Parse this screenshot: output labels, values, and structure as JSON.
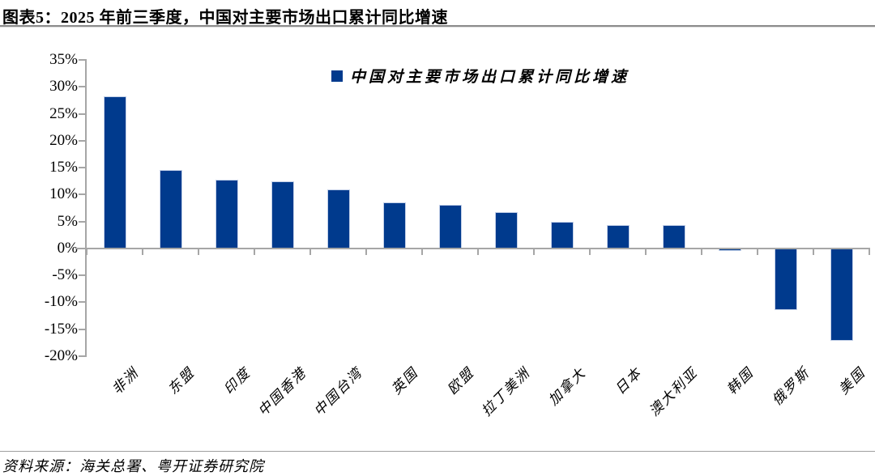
{
  "header": {
    "title": "图表5：2025 年前三季度，中国对主要市场出口累计同比增速"
  },
  "footer": {
    "source": "资料来源：海关总署、粤开证券研究院"
  },
  "chart_data": {
    "type": "bar",
    "title": "图表5：2025 年前三季度，中国对主要市场出口累计同比增速",
    "legend": "中国对主要市场出口累计同比增速",
    "legend_position": "top-center",
    "categories": [
      "非洲",
      "东盟",
      "印度",
      "中国香港",
      "中国台湾",
      "英国",
      "欧盟",
      "拉丁美洲",
      "加拿大",
      "日本",
      "澳大利亚",
      "韩国",
      "俄罗斯",
      "美国"
    ],
    "values": [
      28.2,
      14.6,
      12.8,
      12.5,
      11.0,
      8.6,
      8.1,
      6.8,
      5.0,
      4.4,
      4.3,
      -0.4,
      -11.4,
      -17.2
    ],
    "unit": "%",
    "ylim": [
      -20,
      35
    ],
    "ytick_step": 5,
    "ytick_labels": [
      "35%",
      "30%",
      "25%",
      "20%",
      "15%",
      "10%",
      "5%",
      "0%",
      "-5%",
      "-10%",
      "-15%",
      "-20%"
    ],
    "grid": false,
    "colors": {
      "bar_fill": "#003a8d",
      "bar_border": "#c3d0e8",
      "axis": "#a6a6a6",
      "text": "#000000"
    }
  }
}
